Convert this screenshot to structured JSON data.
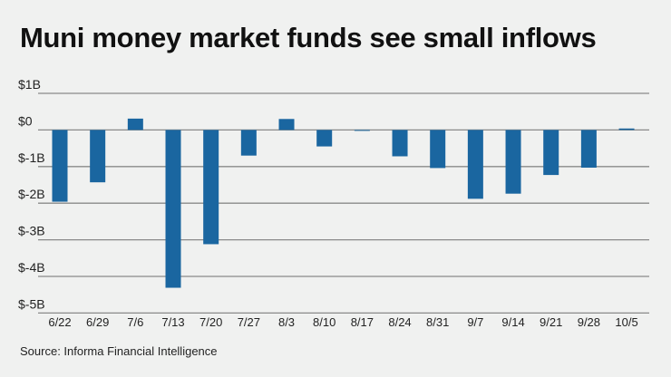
{
  "chart_data": {
    "type": "bar",
    "title": "Muni money market funds see small inflows",
    "source": "Source: Informa Financial Intelligence",
    "categories": [
      "6/22",
      "6/29",
      "7/6",
      "7/13",
      "7/20",
      "7/27",
      "8/3",
      "8/10",
      "8/17",
      "8/24",
      "8/31",
      "9/7",
      "9/14",
      "9/21",
      "9/28",
      "10/5"
    ],
    "values": [
      -1.96,
      -1.43,
      0.31,
      -4.31,
      -3.12,
      -0.7,
      0.3,
      -0.45,
      -0.02,
      -0.72,
      -1.04,
      -1.88,
      -1.74,
      -1.23,
      -1.03,
      0.04
    ],
    "xlabel": "",
    "ylabel": "",
    "ylim": [
      -5,
      1
    ],
    "yticks": [
      1,
      0,
      -1,
      -2,
      -3,
      -4,
      -5
    ],
    "ytick_labels": [
      "$1B",
      "$0",
      "$-1B",
      "$-2B",
      "$-3B",
      "$-4B",
      "$-5B"
    ],
    "grid": true,
    "bar_color": "#1a66a0"
  }
}
